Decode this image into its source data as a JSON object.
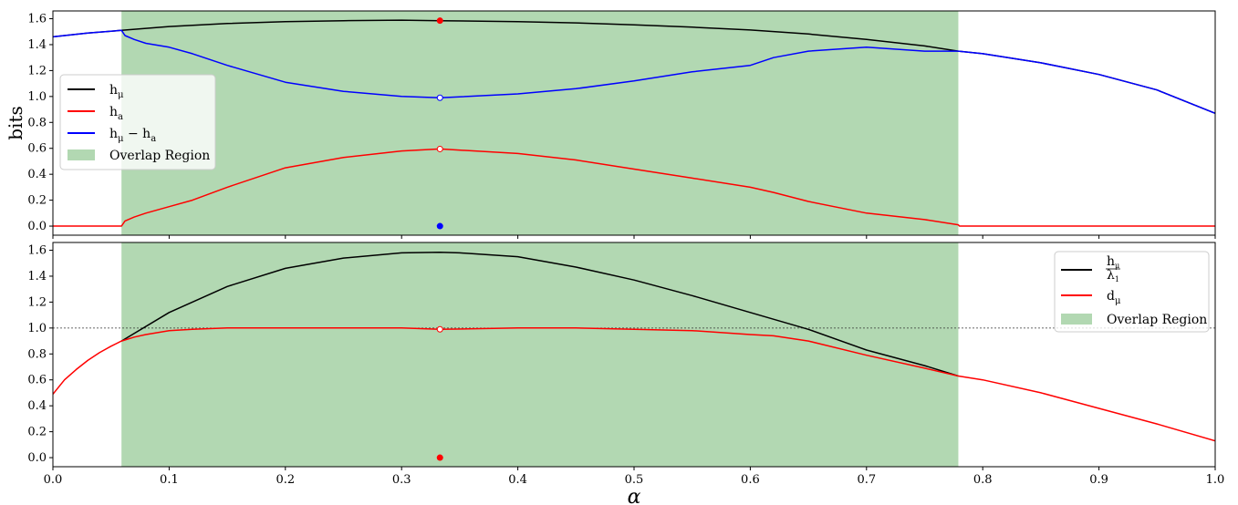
{
  "colors": {
    "black": "#000000",
    "red": "#ff0000",
    "blue": "#0000ff",
    "overlap": "#b2d8b2",
    "marker_fill_white": "#ffffff"
  },
  "chart_data": [
    {
      "type": "line",
      "panel": "top",
      "ylabel": "bits",
      "xlim": [
        0.0,
        1.0
      ],
      "ylim": [
        -0.07,
        1.66
      ],
      "yticks": [
        0.0,
        0.2,
        0.4,
        0.6,
        0.8,
        1.0,
        1.2,
        1.4,
        1.6
      ],
      "ytick_labels": [
        "0.0",
        "0.2",
        "0.4",
        "0.6",
        "0.8",
        "1.0",
        "1.2",
        "1.4",
        "1.6"
      ],
      "overlap_region": [
        0.059,
        0.779
      ],
      "legend_position": "center-left",
      "legend": [
        "h_μ",
        "h_a",
        "h_μ − h_a",
        "Overlap Region"
      ],
      "series": [
        {
          "name": "h_μ",
          "color": "black",
          "x": [
            0.0,
            0.03,
            0.059,
            0.1,
            0.15,
            0.2,
            0.25,
            0.3,
            0.333,
            0.4,
            0.45,
            0.5,
            0.55,
            0.6,
            0.65,
            0.7,
            0.75,
            0.779,
            0.8,
            0.85,
            0.9,
            0.95,
            1.0
          ],
          "y": [
            1.46,
            1.49,
            1.51,
            1.54,
            1.563,
            1.577,
            1.585,
            1.589,
            1.585,
            1.578,
            1.568,
            1.553,
            1.535,
            1.513,
            1.482,
            1.44,
            1.39,
            1.35,
            1.33,
            1.26,
            1.17,
            1.05,
            0.87
          ]
        },
        {
          "name": "h_a",
          "color": "red",
          "x": [
            0.0,
            0.059,
            0.062,
            0.07,
            0.08,
            0.1,
            0.12,
            0.15,
            0.2,
            0.25,
            0.3,
            0.333,
            0.4,
            0.45,
            0.5,
            0.55,
            0.6,
            0.62,
            0.65,
            0.7,
            0.75,
            0.779,
            0.78,
            1.0
          ],
          "y": [
            0.0,
            0.0,
            0.04,
            0.07,
            0.1,
            0.15,
            0.2,
            0.3,
            0.45,
            0.53,
            0.58,
            0.595,
            0.56,
            0.51,
            0.44,
            0.37,
            0.3,
            0.26,
            0.19,
            0.1,
            0.05,
            0.01,
            0.0,
            0.0
          ]
        },
        {
          "name": "h_μ − h_a",
          "color": "blue",
          "x": [
            0.0,
            0.03,
            0.059,
            0.062,
            0.07,
            0.08,
            0.1,
            0.12,
            0.15,
            0.2,
            0.25,
            0.3,
            0.333,
            0.4,
            0.45,
            0.5,
            0.55,
            0.6,
            0.62,
            0.65,
            0.7,
            0.75,
            0.779,
            0.8,
            0.85,
            0.9,
            0.95,
            1.0
          ],
          "y": [
            1.46,
            1.49,
            1.51,
            1.47,
            1.44,
            1.41,
            1.38,
            1.33,
            1.24,
            1.11,
            1.04,
            1.0,
            0.99,
            1.02,
            1.06,
            1.12,
            1.19,
            1.24,
            1.3,
            1.35,
            1.38,
            1.35,
            1.35,
            1.33,
            1.26,
            1.17,
            1.05,
            0.87
          ]
        }
      ],
      "markers": [
        {
          "x": 0.333,
          "y": 1.585,
          "fill": "red",
          "edge": "red"
        },
        {
          "x": 0.333,
          "y": 0.99,
          "fill": "white",
          "edge": "blue"
        },
        {
          "x": 0.333,
          "y": 0.595,
          "fill": "white",
          "edge": "red"
        },
        {
          "x": 0.333,
          "y": 0.0,
          "fill": "blue",
          "edge": "blue"
        }
      ]
    },
    {
      "type": "line",
      "panel": "bottom",
      "xlabel": "α",
      "xlim": [
        0.0,
        1.0
      ],
      "ylim": [
        -0.07,
        1.66
      ],
      "xticks": [
        0.0,
        0.1,
        0.2,
        0.3,
        0.4,
        0.5,
        0.6,
        0.7,
        0.8,
        0.9,
        1.0
      ],
      "xtick_labels": [
        "0.0",
        "0.1",
        "0.2",
        "0.3",
        "0.4",
        "0.5",
        "0.6",
        "0.7",
        "0.8",
        "0.9",
        "1.0"
      ],
      "yticks": [
        0.0,
        0.2,
        0.4,
        0.6,
        0.8,
        1.0,
        1.2,
        1.4,
        1.6
      ],
      "ytick_labels": [
        "0.0",
        "0.2",
        "0.4",
        "0.6",
        "0.8",
        "1.0",
        "1.2",
        "1.4",
        "1.6"
      ],
      "hline": 1.0,
      "overlap_region": [
        0.059,
        0.779
      ],
      "legend_position": "top-right",
      "legend": [
        "h_μ / λ_1",
        "d_μ",
        "Overlap Region"
      ],
      "series": [
        {
          "name": "h_μ / λ_1",
          "color": "black",
          "x": [
            0.059,
            0.1,
            0.15,
            0.2,
            0.25,
            0.3,
            0.333,
            0.35,
            0.4,
            0.45,
            0.5,
            0.55,
            0.6,
            0.65,
            0.7,
            0.75,
            0.779
          ],
          "y": [
            0.9,
            1.12,
            1.32,
            1.46,
            1.54,
            1.58,
            1.585,
            1.58,
            1.55,
            1.47,
            1.37,
            1.25,
            1.12,
            0.99,
            0.83,
            0.71,
            0.63
          ]
        },
        {
          "name": "d_μ",
          "color": "red",
          "x": [
            0.0,
            0.01,
            0.02,
            0.03,
            0.04,
            0.05,
            0.059,
            0.07,
            0.08,
            0.1,
            0.12,
            0.15,
            0.2,
            0.25,
            0.3,
            0.333,
            0.4,
            0.45,
            0.5,
            0.55,
            0.6,
            0.62,
            0.65,
            0.7,
            0.75,
            0.779,
            0.8,
            0.85,
            0.9,
            0.95,
            1.0
          ],
          "y": [
            0.49,
            0.6,
            0.68,
            0.75,
            0.81,
            0.86,
            0.9,
            0.93,
            0.95,
            0.98,
            0.99,
            1.0,
            1.0,
            1.0,
            1.0,
            0.99,
            1.0,
            1.0,
            0.99,
            0.98,
            0.95,
            0.94,
            0.9,
            0.79,
            0.69,
            0.63,
            0.6,
            0.5,
            0.38,
            0.26,
            0.13
          ]
        }
      ],
      "markers": [
        {
          "x": 0.333,
          "y": 0.99,
          "fill": "white",
          "edge": "red"
        },
        {
          "x": 0.333,
          "y": 0.0,
          "fill": "red",
          "edge": "red"
        }
      ]
    }
  ]
}
